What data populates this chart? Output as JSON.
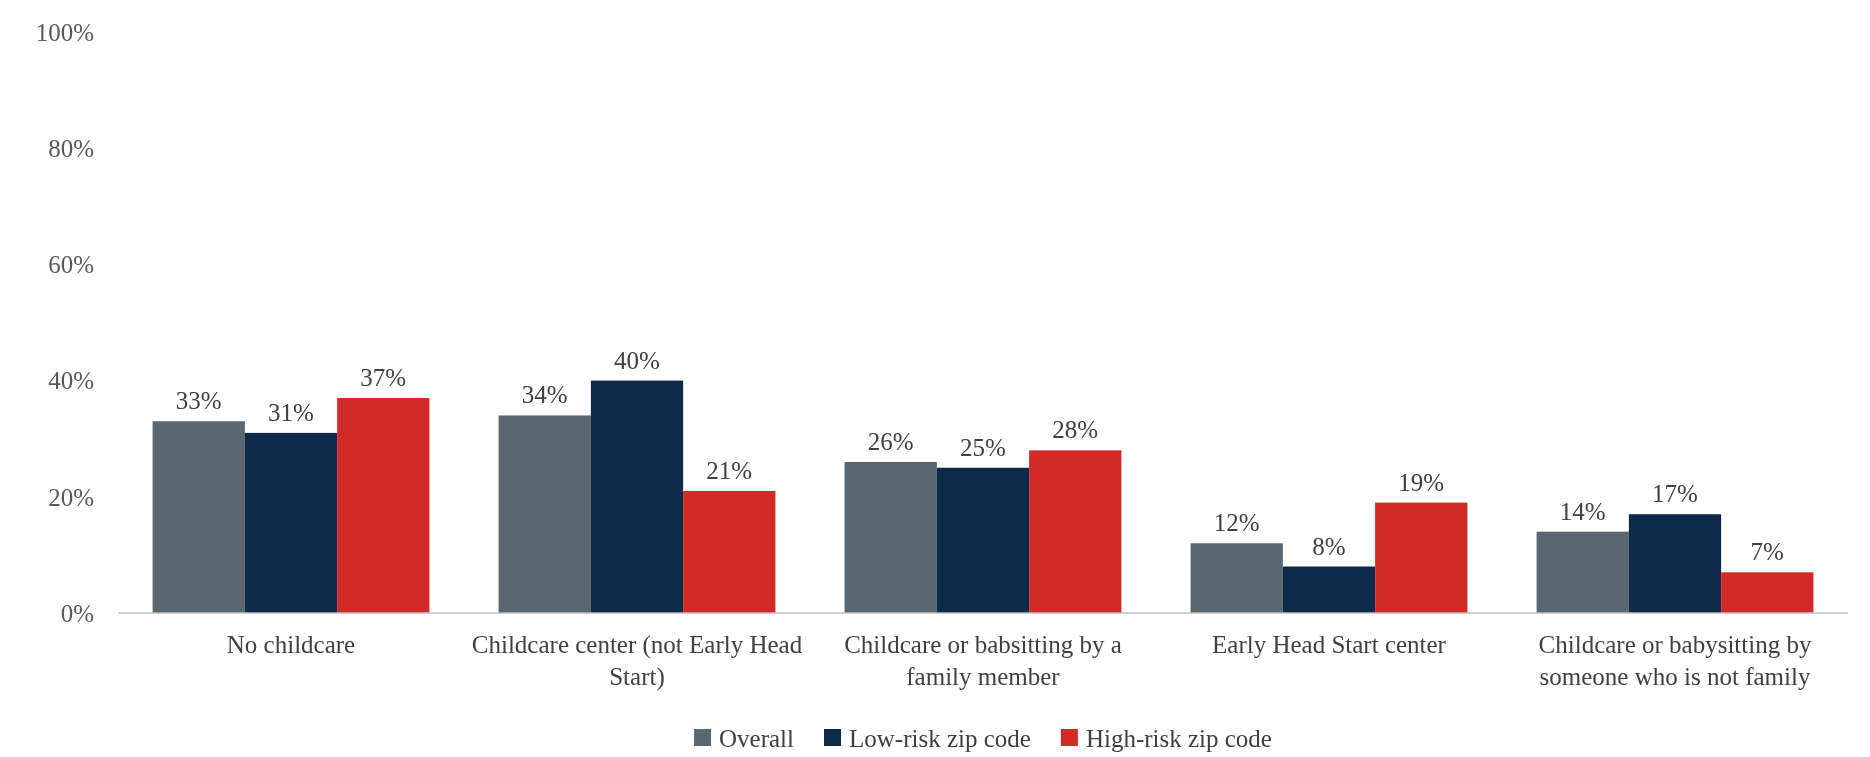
{
  "chart_data": {
    "type": "bar",
    "categories": [
      "No childcare",
      "Childcare center (not Early Head Start)",
      "Childcare or babsitting by a family member",
      "Early Head Start center",
      "Childcare or babysitting by someone who is not family"
    ],
    "series": [
      {
        "name": "Overall",
        "color": "#5a6670",
        "values": [
          33,
          34,
          26,
          12,
          14
        ]
      },
      {
        "name": "Low-risk zip code",
        "color": "#0c2a4a",
        "values": [
          31,
          40,
          25,
          8,
          17
        ]
      },
      {
        "name": "High-risk zip code",
        "color": "#d12a28",
        "values": [
          37,
          21,
          28,
          19,
          7
        ]
      }
    ],
    "value_labels": [
      [
        "33%",
        "34%",
        "26%",
        "12%",
        "14%"
      ],
      [
        "31%",
        "40%",
        "25%",
        "8%",
        "17%"
      ],
      [
        "37%",
        "21%",
        "28%",
        "19%",
        "7%"
      ]
    ],
    "ylim": [
      0,
      100
    ],
    "yticks": [
      {
        "value": 0,
        "label": "0%"
      },
      {
        "value": 20,
        "label": "20%"
      },
      {
        "value": 40,
        "label": "40%"
      },
      {
        "value": 60,
        "label": "60%"
      },
      {
        "value": 80,
        "label": "80%"
      },
      {
        "value": 100,
        "label": "100%"
      }
    ],
    "grid": false,
    "legend": "bottom"
  }
}
